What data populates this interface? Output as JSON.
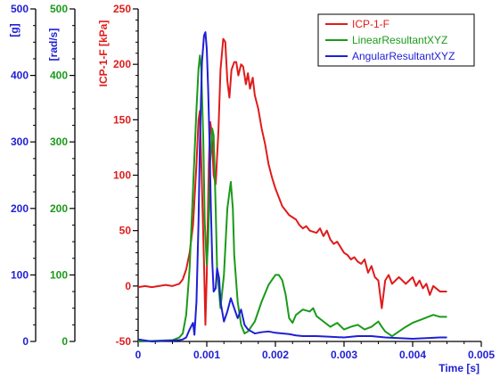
{
  "chart_data": {
    "type": "line",
    "title": "",
    "xlabel": "Time [s]",
    "xlim": [
      0,
      0.005
    ],
    "x_ticks": [
      0,
      0.001,
      0.002,
      0.003,
      0.004,
      0.005
    ],
    "x_tick_labels": [
      "0",
      "0.001",
      "0.002",
      "0.003",
      "0.004",
      "0.005"
    ],
    "grid": false,
    "legend_position": "top-right",
    "axes": [
      {
        "id": "g",
        "label": "[g]",
        "ylim": [
          0,
          500
        ],
        "ticks": [
          0,
          100,
          200,
          300,
          400,
          500
        ],
        "tick_labels": [
          "0",
          "100",
          "200",
          "300",
          "400",
          "500"
        ],
        "color": "#1f1fd6"
      },
      {
        "id": "rads",
        "label": "[rad/s]",
        "ylim": [
          0,
          500
        ],
        "ticks": [
          0,
          100,
          200,
          300,
          400,
          500
        ],
        "tick_labels": [
          "0",
          "100",
          "200",
          "300",
          "400",
          "500"
        ],
        "color": "#1a9a1a"
      },
      {
        "id": "kpa",
        "label": "ICP-1-F [kPa]",
        "ylim": [
          -50,
          250
        ],
        "ticks": [
          -50,
          0,
          50,
          100,
          150,
          200,
          250
        ],
        "tick_labels": [
          "-50",
          "0",
          "50",
          "100",
          "150",
          "200",
          "250"
        ],
        "color": "#e01b1b"
      }
    ],
    "series": [
      {
        "name": "ICP-1-F",
        "axis": "kpa",
        "color": "#e01b1b",
        "points": [
          [
            0,
            -1
          ],
          [
            0.0001,
            0
          ],
          [
            0.0002,
            -1
          ],
          [
            0.0003,
            0
          ],
          [
            0.0004,
            1
          ],
          [
            0.0005,
            0
          ],
          [
            0.0006,
            2
          ],
          [
            0.00065,
            6
          ],
          [
            0.0007,
            15
          ],
          [
            0.00075,
            30
          ],
          [
            0.0008,
            55
          ],
          [
            0.00085,
            110
          ],
          [
            0.00088,
            150
          ],
          [
            0.0009,
            158
          ],
          [
            0.00093,
            90
          ],
          [
            0.00096,
            20
          ],
          [
            0.00098,
            -35
          ],
          [
            0.001,
            10
          ],
          [
            0.00103,
            110
          ],
          [
            0.00105,
            148
          ],
          [
            0.00107,
            140
          ],
          [
            0.0011,
            100
          ],
          [
            0.00113,
            92
          ],
          [
            0.00117,
            140
          ],
          [
            0.0012,
            195
          ],
          [
            0.00124,
            223
          ],
          [
            0.00127,
            220
          ],
          [
            0.0013,
            185
          ],
          [
            0.00133,
            170
          ],
          [
            0.00136,
            195
          ],
          [
            0.0014,
            202
          ],
          [
            0.00143,
            202
          ],
          [
            0.00146,
            190
          ],
          [
            0.0015,
            200
          ],
          [
            0.00153,
            198
          ],
          [
            0.00157,
            182
          ],
          [
            0.0016,
            192
          ],
          [
            0.00163,
            178
          ],
          [
            0.00167,
            188
          ],
          [
            0.0017,
            172
          ],
          [
            0.00175,
            160
          ],
          [
            0.0018,
            142
          ],
          [
            0.00185,
            128
          ],
          [
            0.0019,
            110
          ],
          [
            0.00195,
            98
          ],
          [
            0.002,
            88
          ],
          [
            0.00205,
            80
          ],
          [
            0.0021,
            72
          ],
          [
            0.00215,
            68
          ],
          [
            0.0022,
            64
          ],
          [
            0.00225,
            62
          ],
          [
            0.0023,
            60
          ],
          [
            0.00235,
            55
          ],
          [
            0.0024,
            52
          ],
          [
            0.00245,
            54
          ],
          [
            0.0025,
            50
          ],
          [
            0.0026,
            48
          ],
          [
            0.00265,
            52
          ],
          [
            0.0027,
            45
          ],
          [
            0.00275,
            50
          ],
          [
            0.0028,
            42
          ],
          [
            0.00285,
            38
          ],
          [
            0.0029,
            40
          ],
          [
            0.00295,
            35
          ],
          [
            0.003,
            30
          ],
          [
            0.00305,
            28
          ],
          [
            0.0031,
            24
          ],
          [
            0.00315,
            26
          ],
          [
            0.0032,
            22
          ],
          [
            0.00325,
            20
          ],
          [
            0.0033,
            24
          ],
          [
            0.00335,
            12
          ],
          [
            0.0034,
            18
          ],
          [
            0.00345,
            8
          ],
          [
            0.0035,
            5
          ],
          [
            0.00352,
            -5
          ],
          [
            0.00355,
            -20
          ],
          [
            0.0036,
            5
          ],
          [
            0.00365,
            10
          ],
          [
            0.0037,
            2
          ],
          [
            0.0038,
            8
          ],
          [
            0.0039,
            2
          ],
          [
            0.004,
            8
          ],
          [
            0.00405,
            0
          ],
          [
            0.0041,
            5
          ],
          [
            0.00415,
            -2
          ],
          [
            0.0042,
            2
          ],
          [
            0.00425,
            -8
          ],
          [
            0.0043,
            0
          ],
          [
            0.0044,
            -5
          ],
          [
            0.0045,
            -5
          ]
        ]
      },
      {
        "name": "LinearResultantXYZ",
        "axis": "g",
        "color": "#1a9a1a",
        "points": [
          [
            0,
            0
          ],
          [
            0.0005,
            2
          ],
          [
            0.0006,
            6
          ],
          [
            0.00065,
            12
          ],
          [
            0.0007,
            40
          ],
          [
            0.00075,
            110
          ],
          [
            0.0008,
            230
          ],
          [
            0.00085,
            350
          ],
          [
            0.00088,
            410
          ],
          [
            0.0009,
            430
          ],
          [
            0.00092,
            410
          ],
          [
            0.00095,
            300
          ],
          [
            0.00097,
            180
          ],
          [
            0.001,
            115
          ],
          [
            0.00102,
            150
          ],
          [
            0.00105,
            270
          ],
          [
            0.00108,
            320
          ],
          [
            0.0011,
            310
          ],
          [
            0.00113,
            200
          ],
          [
            0.00115,
            110
          ],
          [
            0.0012,
            50
          ],
          [
            0.00125,
            100
          ],
          [
            0.0013,
            200
          ],
          [
            0.00135,
            240
          ],
          [
            0.00138,
            200
          ],
          [
            0.0014,
            130
          ],
          [
            0.00145,
            60
          ],
          [
            0.0015,
            25
          ],
          [
            0.00155,
            12
          ],
          [
            0.0016,
            15
          ],
          [
            0.0017,
            30
          ],
          [
            0.0018,
            60
          ],
          [
            0.0019,
            85
          ],
          [
            0.002,
            100
          ],
          [
            0.00205,
            100
          ],
          [
            0.0021,
            92
          ],
          [
            0.00215,
            70
          ],
          [
            0.0022,
            35
          ],
          [
            0.00225,
            28
          ],
          [
            0.0023,
            40
          ],
          [
            0.0024,
            48
          ],
          [
            0.0025,
            45
          ],
          [
            0.00255,
            50
          ],
          [
            0.0026,
            38
          ],
          [
            0.0027,
            30
          ],
          [
            0.0028,
            22
          ],
          [
            0.0029,
            28
          ],
          [
            0.003,
            18
          ],
          [
            0.0031,
            22
          ],
          [
            0.0032,
            25
          ],
          [
            0.0033,
            18
          ],
          [
            0.0034,
            22
          ],
          [
            0.0035,
            30
          ],
          [
            0.00355,
            22
          ],
          [
            0.0036,
            15
          ],
          [
            0.0037,
            8
          ],
          [
            0.0038,
            15
          ],
          [
            0.0039,
            22
          ],
          [
            0.004,
            28
          ],
          [
            0.0041,
            32
          ],
          [
            0.0042,
            36
          ],
          [
            0.0043,
            40
          ],
          [
            0.0044,
            37
          ],
          [
            0.0045,
            37
          ]
        ]
      },
      {
        "name": "AngularResultantXYZ",
        "axis": "rads",
        "color": "#1f1fd6",
        "points": [
          [
            0,
            3
          ],
          [
            0.0002,
            0
          ],
          [
            0.0004,
            1
          ],
          [
            0.0006,
            2
          ],
          [
            0.00065,
            3
          ],
          [
            0.0007,
            6
          ],
          [
            0.00075,
            18
          ],
          [
            0.0008,
            28
          ],
          [
            0.00082,
            10
          ],
          [
            0.00085,
            60
          ],
          [
            0.00088,
            180
          ],
          [
            0.0009,
            300
          ],
          [
            0.00093,
            420
          ],
          [
            0.00096,
            460
          ],
          [
            0.00098,
            465
          ],
          [
            0.001,
            440
          ],
          [
            0.00102,
            380
          ],
          [
            0.00104,
            300
          ],
          [
            0.00106,
            200
          ],
          [
            0.00108,
            120
          ],
          [
            0.0011,
            75
          ],
          [
            0.00113,
            80
          ],
          [
            0.00115,
            110
          ],
          [
            0.00118,
            95
          ],
          [
            0.0012,
            60
          ],
          [
            0.00125,
            30
          ],
          [
            0.0013,
            45
          ],
          [
            0.00135,
            65
          ],
          [
            0.0014,
            50
          ],
          [
            0.00145,
            35
          ],
          [
            0.0015,
            48
          ],
          [
            0.00155,
            25
          ],
          [
            0.0016,
            18
          ],
          [
            0.0017,
            12
          ],
          [
            0.0018,
            14
          ],
          [
            0.0019,
            15
          ],
          [
            0.002,
            13
          ],
          [
            0.0021,
            12
          ],
          [
            0.0022,
            11
          ],
          [
            0.0023,
            9
          ],
          [
            0.0024,
            8
          ],
          [
            0.0026,
            8
          ],
          [
            0.0028,
            7
          ],
          [
            0.003,
            6
          ],
          [
            0.0032,
            8
          ],
          [
            0.0034,
            8
          ],
          [
            0.0036,
            6
          ],
          [
            0.0038,
            5
          ],
          [
            0.004,
            4
          ],
          [
            0.0042,
            5
          ],
          [
            0.0044,
            6
          ],
          [
            0.0045,
            6
          ]
        ]
      }
    ]
  }
}
